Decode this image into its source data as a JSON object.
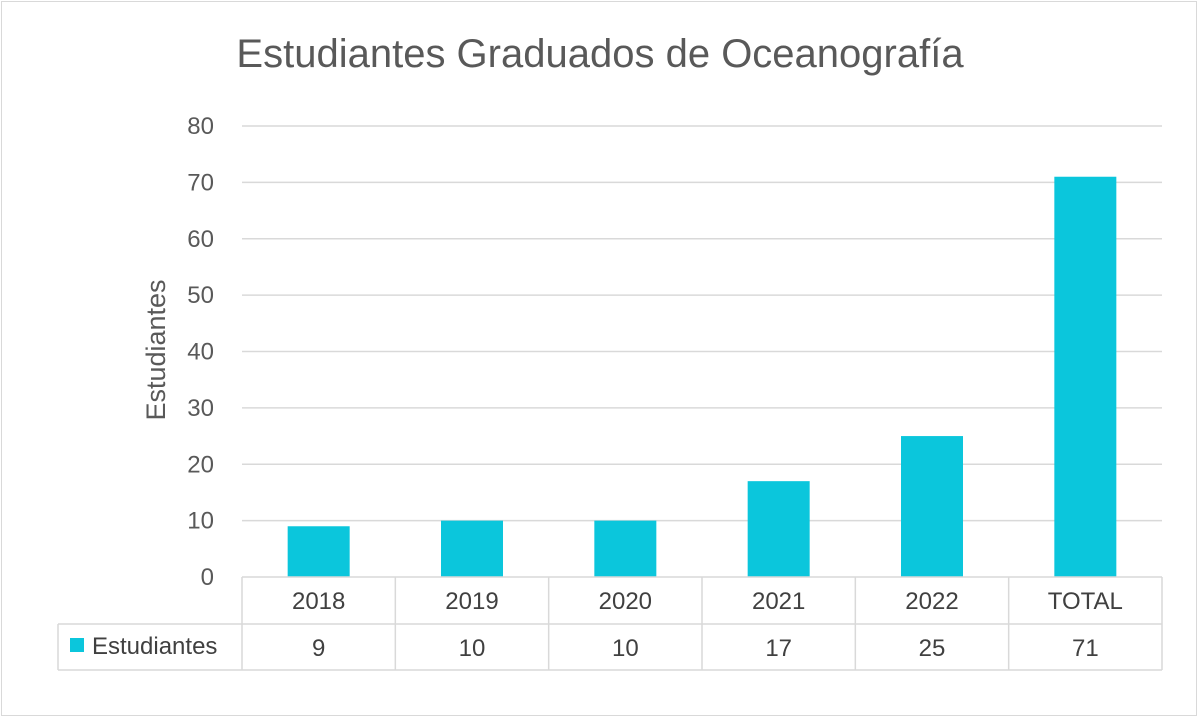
{
  "chart_data": {
    "type": "bar",
    "title": "Estudiantes Graduados de Oceanografía",
    "ylabel": "Estudiantes",
    "xlabel": "",
    "categories": [
      "2018",
      "2019",
      "2020",
      "2021",
      "2022",
      "TOTAL"
    ],
    "series": [
      {
        "name": "Estudiantes",
        "values": [
          9,
          10,
          10,
          17,
          25,
          71
        ]
      }
    ],
    "ylim": [
      0,
      80
    ],
    "yticks": [
      0,
      10,
      20,
      30,
      40,
      50,
      60,
      70,
      80
    ],
    "grid": true,
    "legend": "data-table-left",
    "data_table": true
  },
  "colors": {
    "bar": "#0BC6DC",
    "grid": "#d9d9d9",
    "text": "#595959"
  }
}
